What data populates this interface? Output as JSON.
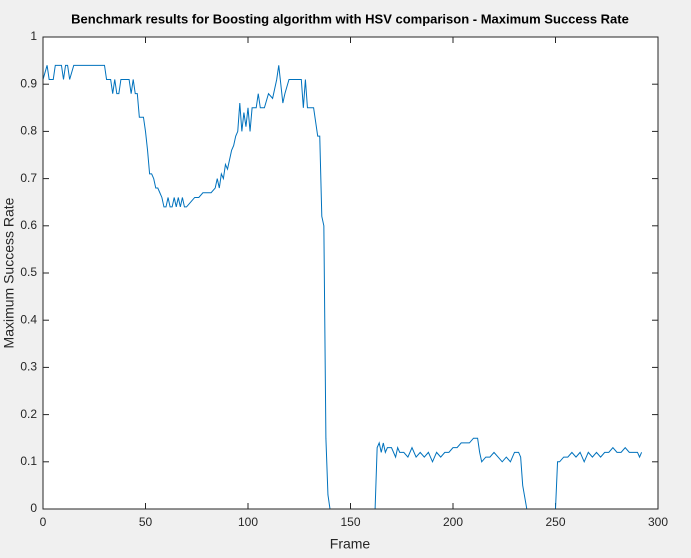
{
  "chart_data": {
    "type": "line",
    "title": "Benchmark results for Boosting algorithm with HSV comparison - Maximum Success Rate",
    "xlabel": "Frame",
    "ylabel": "Maximum Success Rate",
    "xlim": [
      0,
      300
    ],
    "ylim": [
      0,
      1
    ],
    "xticks": [
      0,
      50,
      100,
      150,
      200,
      250,
      300
    ],
    "yticks": [
      0,
      0.1,
      0.2,
      0.3,
      0.4,
      0.5,
      0.6,
      0.7,
      0.8,
      0.9,
      1
    ],
    "x": [
      0,
      2,
      3,
      5,
      6,
      9,
      10,
      11,
      12,
      13,
      15,
      18,
      20,
      22,
      24,
      26,
      28,
      30,
      31,
      32,
      33,
      34,
      35,
      36,
      37,
      38,
      40,
      42,
      43,
      44,
      45,
      46,
      47,
      49,
      50,
      51,
      52,
      53,
      54,
      55,
      56,
      57,
      58,
      59,
      60,
      61,
      62,
      63,
      64,
      65,
      66,
      67,
      68,
      69,
      70,
      72,
      74,
      76,
      78,
      80,
      82,
      84,
      85,
      86,
      87,
      88,
      89,
      90,
      91,
      92,
      93,
      94,
      95,
      96,
      97,
      98,
      99,
      100,
      101,
      102,
      104,
      105,
      106,
      108,
      110,
      112,
      114,
      115,
      116,
      117,
      118,
      120,
      122,
      124,
      126,
      127,
      128,
      129,
      131,
      132,
      133,
      134,
      135,
      136,
      137,
      138,
      139,
      140,
      142,
      150,
      160,
      162,
      163,
      164,
      165,
      166,
      167,
      168,
      170,
      172,
      173,
      174,
      176,
      178,
      180,
      182,
      184,
      186,
      188,
      190,
      192,
      194,
      196,
      198,
      200,
      202,
      204,
      206,
      208,
      210,
      212,
      213,
      214,
      216,
      218,
      220,
      222,
      224,
      226,
      228,
      230,
      232,
      233,
      234,
      236,
      238,
      240,
      245,
      249,
      250,
      251,
      252,
      254,
      256,
      258,
      260,
      262,
      264,
      266,
      268,
      270,
      272,
      274,
      276,
      278,
      280,
      282,
      284,
      286,
      288,
      290,
      291,
      292
    ],
    "series": [
      {
        "color": "#0072bd",
        "values": [
          0.91,
          0.94,
          0.91,
          0.91,
          0.94,
          0.94,
          0.91,
          0.94,
          0.94,
          0.91,
          0.94,
          0.94,
          0.94,
          0.94,
          0.94,
          0.94,
          0.94,
          0.94,
          0.91,
          0.91,
          0.91,
          0.88,
          0.91,
          0.88,
          0.88,
          0.91,
          0.91,
          0.91,
          0.88,
          0.91,
          0.88,
          0.88,
          0.83,
          0.83,
          0.8,
          0.76,
          0.71,
          0.71,
          0.7,
          0.68,
          0.68,
          0.67,
          0.66,
          0.64,
          0.64,
          0.66,
          0.64,
          0.64,
          0.66,
          0.64,
          0.66,
          0.64,
          0.66,
          0.64,
          0.64,
          0.65,
          0.66,
          0.66,
          0.67,
          0.67,
          0.67,
          0.68,
          0.7,
          0.68,
          0.71,
          0.7,
          0.73,
          0.72,
          0.74,
          0.76,
          0.77,
          0.79,
          0.8,
          0.86,
          0.8,
          0.84,
          0.81,
          0.85,
          0.8,
          0.85,
          0.85,
          0.88,
          0.85,
          0.85,
          0.88,
          0.87,
          0.91,
          0.94,
          0.9,
          0.86,
          0.88,
          0.91,
          0.91,
          0.91,
          0.91,
          0.85,
          0.91,
          0.85,
          0.85,
          0.85,
          0.82,
          0.79,
          0.79,
          0.62,
          0.6,
          0.15,
          0.03,
          0,
          0,
          0,
          0,
          0,
          0.13,
          0.14,
          0.12,
          0.14,
          0.12,
          0.13,
          0.13,
          0.11,
          0.13,
          0.12,
          0.12,
          0.11,
          0.13,
          0.11,
          0.12,
          0.11,
          0.12,
          0.1,
          0.12,
          0.11,
          0.12,
          0.12,
          0.13,
          0.13,
          0.14,
          0.14,
          0.14,
          0.15,
          0.15,
          0.12,
          0.1,
          0.11,
          0.11,
          0.12,
          0.11,
          0.1,
          0.11,
          0.1,
          0.12,
          0.12,
          0.11,
          0.05,
          0,
          0,
          0,
          0,
          0,
          0,
          0.1,
          0.1,
          0.11,
          0.11,
          0.12,
          0.11,
          0.12,
          0.1,
          0.12,
          0.11,
          0.12,
          0.11,
          0.12,
          0.12,
          0.13,
          0.12,
          0.12,
          0.13,
          0.12,
          0.12,
          0.12,
          0.11,
          0.12
        ]
      }
    ]
  }
}
